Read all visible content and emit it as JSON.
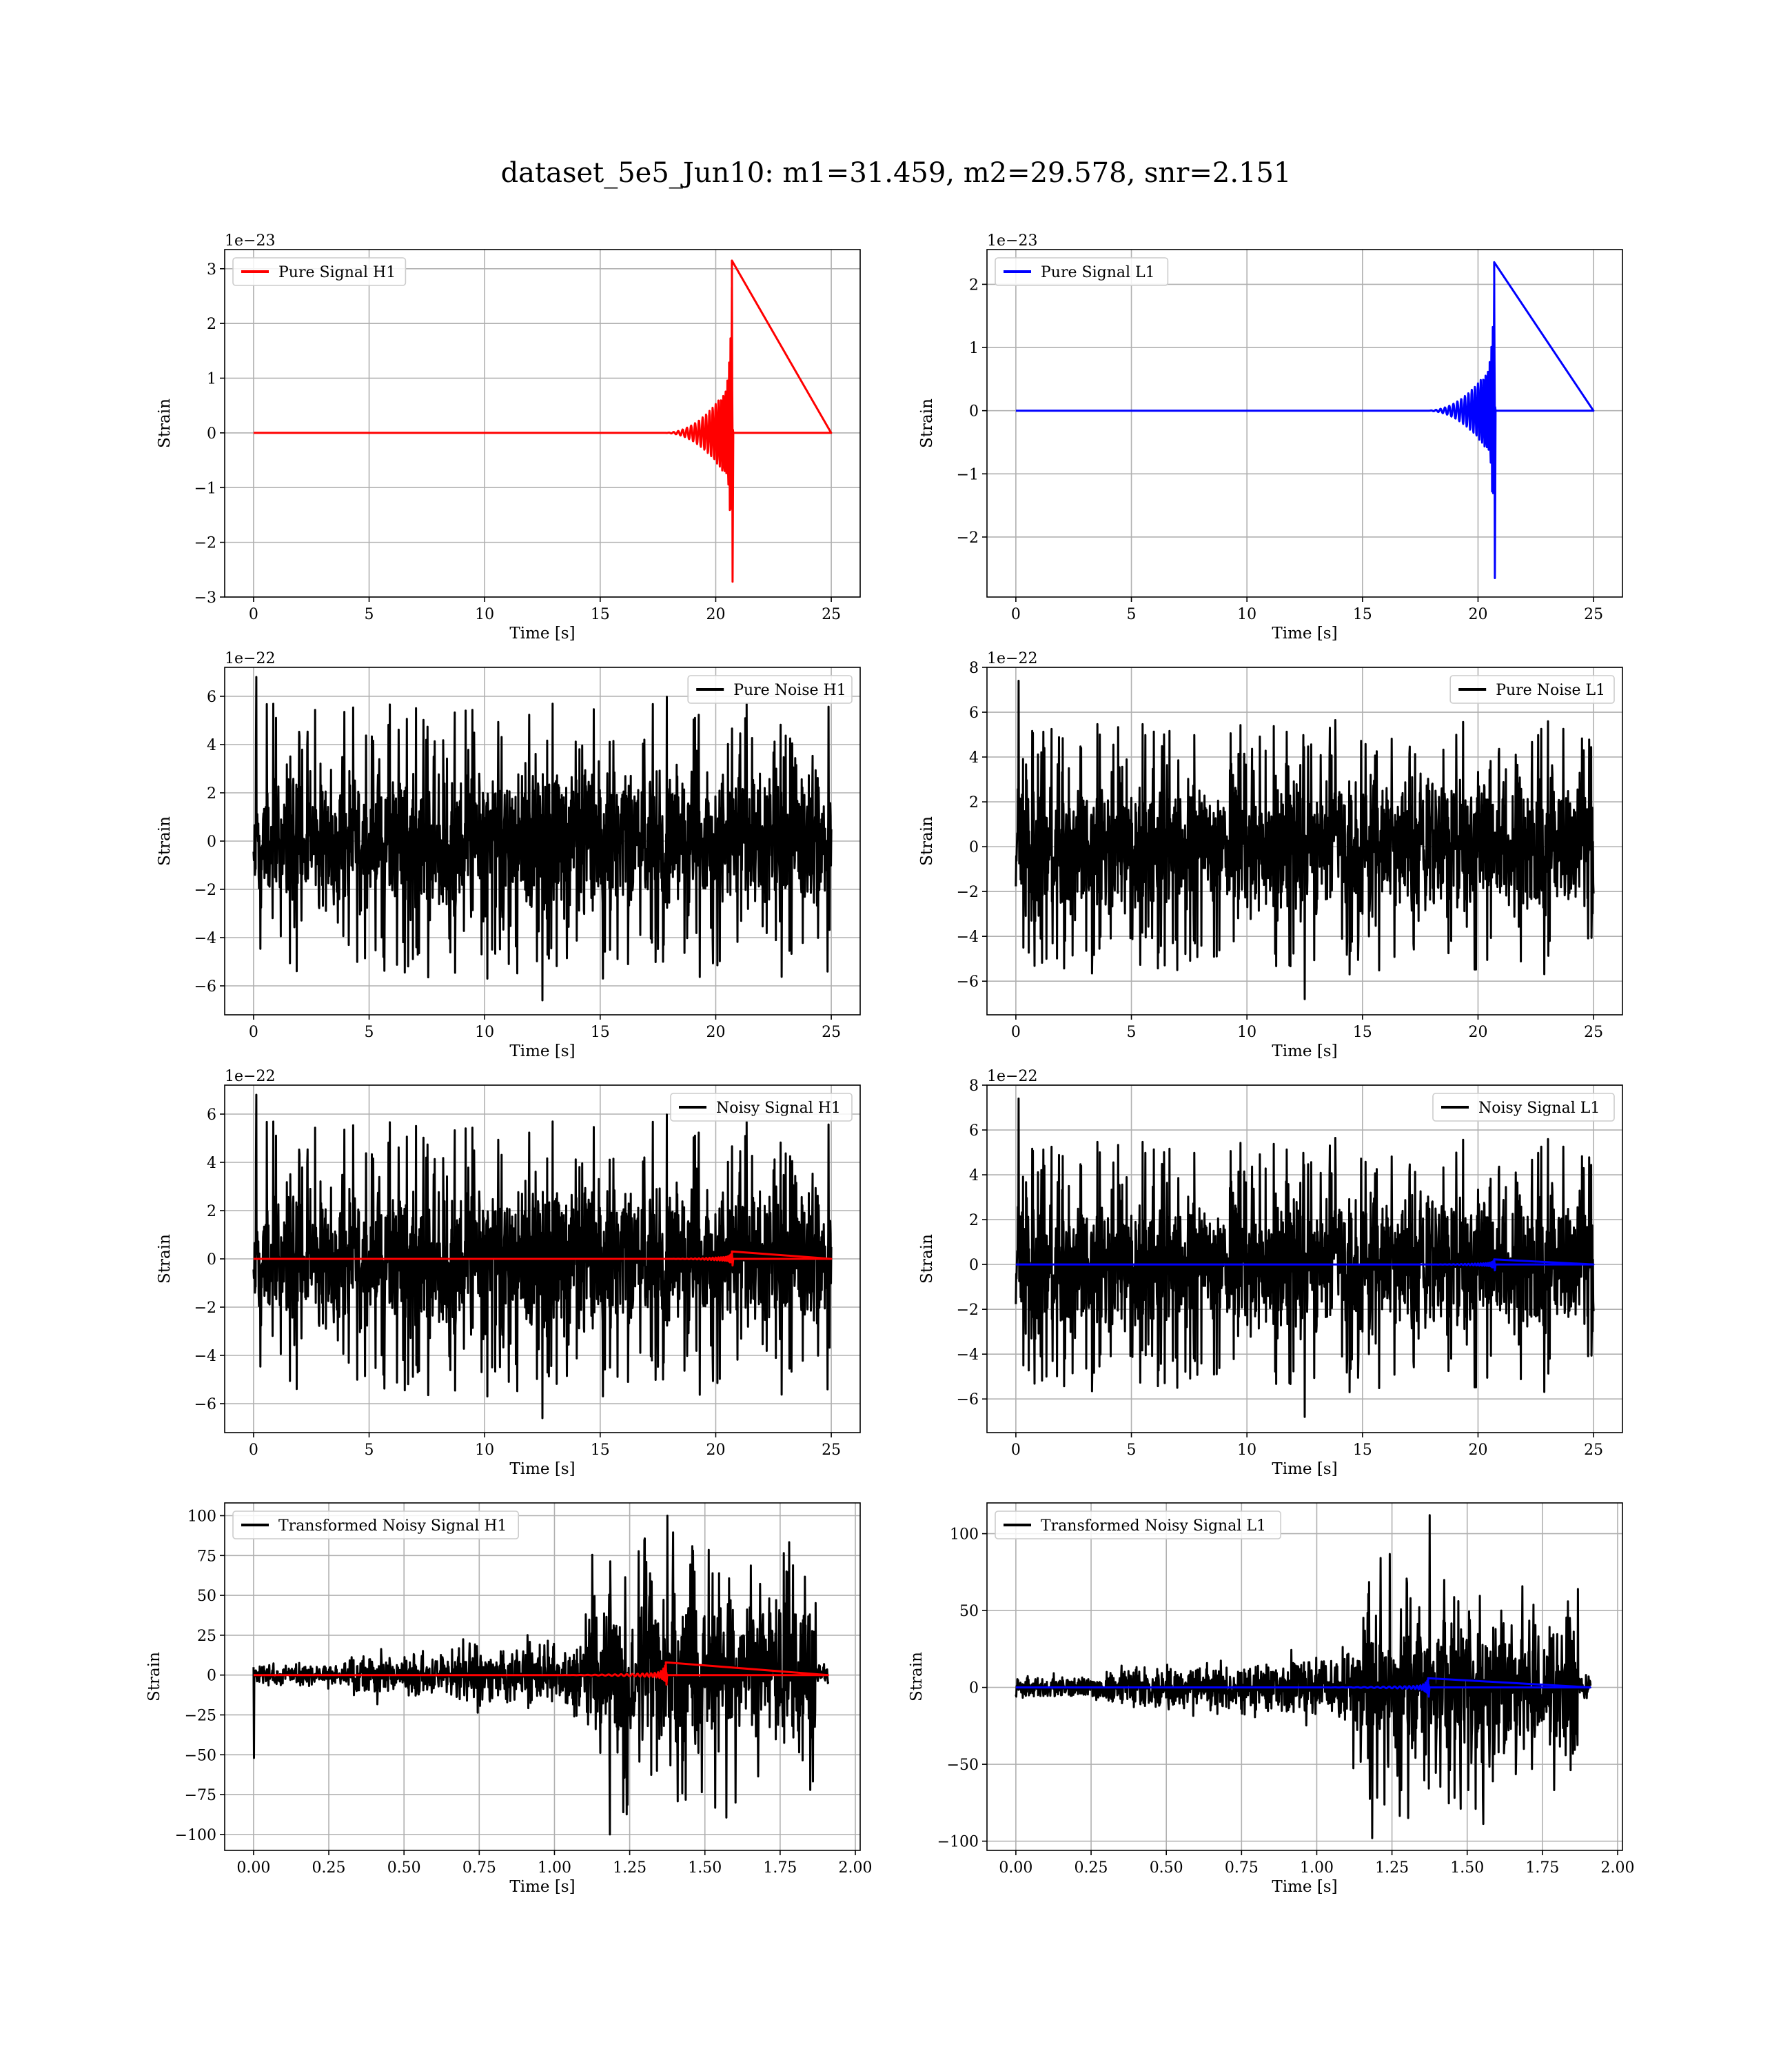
{
  "figure": {
    "title": "dataset_5e5_Jun10: m1=31.459, m2=29.578, snr=2.151"
  },
  "colors": {
    "h1_signal": "#ff0000",
    "l1_signal": "#0000ff",
    "noise": "#000000",
    "grid": "#b0b0b0"
  },
  "chart_data": [
    {
      "id": "pure-signal-h1",
      "type": "line",
      "xlabel": "Time [s]",
      "ylabel": "Strain",
      "offset_text": "1e−23",
      "xlim": [
        -1.25,
        26.25
      ],
      "ylim": [
        -3,
        3.35
      ],
      "xticks": [
        0,
        5,
        10,
        15,
        20,
        25
      ],
      "xtick_labels": [
        "0",
        "5",
        "10",
        "15",
        "20",
        "25"
      ],
      "yticks": [
        -3,
        -2,
        -1,
        0,
        1,
        2,
        3
      ],
      "ytick_labels": [
        "−3",
        "−2",
        "−1",
        "0",
        "1",
        "2",
        "3"
      ],
      "legend": "upper left",
      "grid": true,
      "series": [
        {
          "name": "Pure Signal H1",
          "color": "#ff0000",
          "kind": "chirp",
          "t_start": 0,
          "t_end": 25,
          "t_merge": 20.7,
          "peak_pos": 3.15,
          "peak_neg": -2.72,
          "inspiral_amp": 0.95
        }
      ]
    },
    {
      "id": "pure-signal-l1",
      "type": "line",
      "xlabel": "Time [s]",
      "ylabel": "Strain",
      "offset_text": "1e−23",
      "xlim": [
        -1.25,
        26.25
      ],
      "ylim": [
        -2.95,
        2.55
      ],
      "xticks": [
        0,
        5,
        10,
        15,
        20,
        25
      ],
      "xtick_labels": [
        "0",
        "5",
        "10",
        "15",
        "20",
        "25"
      ],
      "yticks": [
        -2,
        -1,
        0,
        1,
        2
      ],
      "ytick_labels": [
        "−2",
        "−1",
        "0",
        "1",
        "2"
      ],
      "legend": "upper left",
      "grid": true,
      "series": [
        {
          "name": "Pure Signal L1",
          "color": "#0000ff",
          "kind": "chirp",
          "t_start": 0,
          "t_end": 25,
          "t_merge": 20.7,
          "peak_pos": 2.35,
          "peak_neg": -2.65,
          "inspiral_amp": 0.78
        }
      ]
    },
    {
      "id": "pure-noise-h1",
      "type": "line",
      "xlabel": "Time [s]",
      "ylabel": "Strain",
      "offset_text": "1e−22",
      "xlim": [
        -1.25,
        26.25
      ],
      "ylim": [
        -7.2,
        7.2
      ],
      "xticks": [
        0,
        5,
        10,
        15,
        20,
        25
      ],
      "xtick_labels": [
        "0",
        "5",
        "10",
        "15",
        "20",
        "25"
      ],
      "yticks": [
        -6,
        -4,
        -2,
        0,
        2,
        4,
        6
      ],
      "ytick_labels": [
        "−6",
        "−4",
        "−2",
        "0",
        "2",
        "4",
        "6"
      ],
      "legend": "upper right",
      "grid": true,
      "series": [
        {
          "name": "Pure Noise H1",
          "color": "#000000",
          "kind": "noise",
          "t_start": 0,
          "t_end": 25,
          "core": 3.8,
          "max": 6.8,
          "min": -6.6,
          "seed": 11
        }
      ]
    },
    {
      "id": "pure-noise-l1",
      "type": "line",
      "xlabel": "Time [s]",
      "ylabel": "Strain",
      "offset_text": "1e−22",
      "xlim": [
        -1.25,
        26.25
      ],
      "ylim": [
        -7.5,
        8.0
      ],
      "xticks": [
        0,
        5,
        10,
        15,
        20,
        25
      ],
      "xtick_labels": [
        "0",
        "5",
        "10",
        "15",
        "20",
        "25"
      ],
      "yticks": [
        -6,
        -4,
        -2,
        0,
        2,
        4,
        6,
        8
      ],
      "ytick_labels": [
        "−6",
        "−4",
        "−2",
        "0",
        "2",
        "4",
        "6",
        "8"
      ],
      "legend": "upper right",
      "grid": true,
      "series": [
        {
          "name": "Pure Noise L1",
          "color": "#000000",
          "kind": "noise",
          "t_start": 0,
          "t_end": 25,
          "core": 3.8,
          "max": 7.4,
          "min": -6.8,
          "seed": 23
        }
      ]
    },
    {
      "id": "noisy-signal-h1",
      "type": "line",
      "xlabel": "Time [s]",
      "ylabel": "Strain",
      "offset_text": "1e−22",
      "xlim": [
        -1.25,
        26.25
      ],
      "ylim": [
        -7.2,
        7.2
      ],
      "xticks": [
        0,
        5,
        10,
        15,
        20,
        25
      ],
      "xtick_labels": [
        "0",
        "5",
        "10",
        "15",
        "20",
        "25"
      ],
      "yticks": [
        -6,
        -4,
        -2,
        0,
        2,
        4,
        6
      ],
      "ytick_labels": [
        "−6",
        "−4",
        "−2",
        "0",
        "2",
        "4",
        "6"
      ],
      "legend": "upper right",
      "grid": true,
      "series": [
        {
          "name": "Noisy Signal H1",
          "color": "#000000",
          "kind": "noise",
          "t_start": 0,
          "t_end": 25,
          "core": 3.8,
          "max": 6.8,
          "min": -6.6,
          "seed": 11
        },
        {
          "color": "#ff0000",
          "kind": "chirp",
          "t_start": 0,
          "t_end": 25,
          "t_merge": 20.7,
          "peak_pos": 0.31,
          "peak_neg": -0.27,
          "inspiral_amp": 0.1
        }
      ]
    },
    {
      "id": "noisy-signal-l1",
      "type": "line",
      "xlabel": "Time [s]",
      "ylabel": "Strain",
      "offset_text": "1e−22",
      "xlim": [
        -1.25,
        26.25
      ],
      "ylim": [
        -7.5,
        8.0
      ],
      "xticks": [
        0,
        5,
        10,
        15,
        20,
        25
      ],
      "xtick_labels": [
        "0",
        "5",
        "10",
        "15",
        "20",
        "25"
      ],
      "yticks": [
        -6,
        -4,
        -2,
        0,
        2,
        4,
        6,
        8
      ],
      "ytick_labels": [
        "−6",
        "−4",
        "−2",
        "0",
        "2",
        "4",
        "6",
        "8"
      ],
      "legend": "upper right",
      "grid": true,
      "series": [
        {
          "name": "Noisy Signal L1",
          "color": "#000000",
          "kind": "noise",
          "t_start": 0,
          "t_end": 25,
          "core": 3.8,
          "max": 7.4,
          "min": -6.8,
          "seed": 23
        },
        {
          "color": "#0000ff",
          "kind": "chirp",
          "t_start": 0,
          "t_end": 25,
          "t_merge": 20.7,
          "peak_pos": 0.23,
          "peak_neg": -0.26,
          "inspiral_amp": 0.08
        }
      ]
    },
    {
      "id": "transformed-noisy-signal-h1",
      "type": "line",
      "xlabel": "Time [s]",
      "ylabel": "Strain",
      "offset_text": "",
      "xlim": [
        -0.096,
        2.016
      ],
      "ylim": [
        -110,
        108
      ],
      "xticks": [
        0,
        0.25,
        0.5,
        0.75,
        1.0,
        1.25,
        1.5,
        1.75,
        2.0
      ],
      "xtick_labels": [
        "0.00",
        "0.25",
        "0.50",
        "0.75",
        "1.00",
        "1.25",
        "1.50",
        "1.75",
        "2.00"
      ],
      "yticks": [
        -100,
        -75,
        -50,
        -25,
        0,
        25,
        50,
        75,
        100
      ],
      "ytick_labels": [
        "−100",
        "−75",
        "−50",
        "−25",
        "0",
        "25",
        "50",
        "75",
        "100"
      ],
      "legend": "upper left",
      "grid": true,
      "series": [
        {
          "name": "Transformed Noisy Signal H1",
          "color": "#000000",
          "kind": "whitened",
          "t_start": 0,
          "t_end": 1.91,
          "t_jump": 1.1,
          "t_drop": 1.87,
          "max": 100,
          "min": -100,
          "spike": -52,
          "seed": 41
        },
        {
          "color": "#ff0000",
          "kind": "chirp",
          "t_start": 0,
          "t_end": 1.91,
          "t_merge": 1.37,
          "peak_pos": 8,
          "peak_neg": -6,
          "inspiral_amp": 1.5,
          "window": 0.4
        }
      ]
    },
    {
      "id": "transformed-noisy-signal-l1",
      "type": "line",
      "xlabel": "Time [s]",
      "ylabel": "Strain",
      "offset_text": "",
      "xlim": [
        -0.096,
        2.016
      ],
      "ylim": [
        -106,
        120
      ],
      "xticks": [
        0,
        0.25,
        0.5,
        0.75,
        1.0,
        1.25,
        1.5,
        1.75,
        2.0
      ],
      "xtick_labels": [
        "0.00",
        "0.25",
        "0.50",
        "0.75",
        "1.00",
        "1.25",
        "1.50",
        "1.75",
        "2.00"
      ],
      "yticks": [
        -100,
        -50,
        0,
        50,
        100
      ],
      "ytick_labels": [
        "−100",
        "−50",
        "0",
        "50",
        "100"
      ],
      "legend": "upper left",
      "grid": true,
      "series": [
        {
          "name": "Transformed Noisy Signal L1",
          "color": "#000000",
          "kind": "whitened",
          "t_start": 0,
          "t_end": 1.91,
          "t_jump": 1.12,
          "t_drop": 1.87,
          "max": 112,
          "min": -98,
          "spike": -6,
          "seed": 57
        },
        {
          "color": "#0000ff",
          "kind": "chirp",
          "t_start": 0,
          "t_end": 1.91,
          "t_merge": 1.37,
          "peak_pos": 6,
          "peak_neg": -6,
          "inspiral_amp": 1.2,
          "window": 0.4
        }
      ]
    }
  ]
}
